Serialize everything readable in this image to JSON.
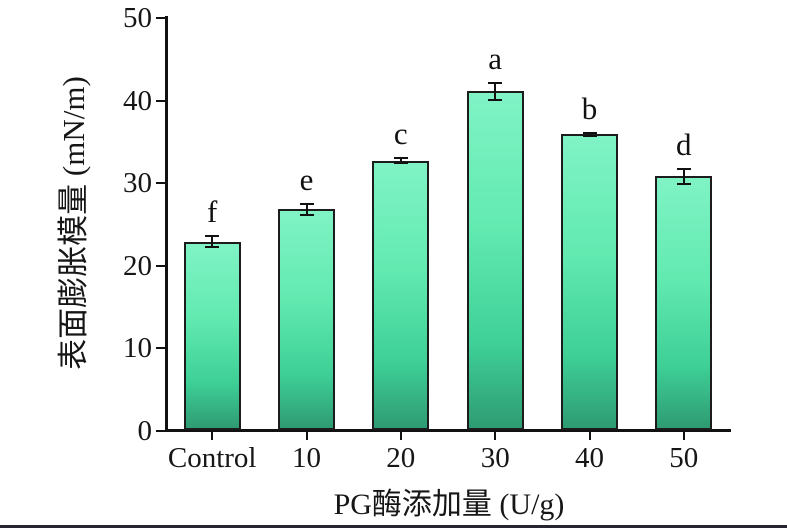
{
  "chart_data": {
    "type": "bar",
    "title": "",
    "categories": [
      "Control",
      "10",
      "20",
      "30",
      "40",
      "50"
    ],
    "values": [
      22.9,
      26.8,
      32.7,
      41.1,
      35.9,
      30.8
    ],
    "errors": [
      0.7,
      0.7,
      0.3,
      1.0,
      0.2,
      0.9
    ],
    "sig_letters": [
      "f",
      "e",
      "c",
      "a",
      "b",
      "d"
    ],
    "xlabel": "PG酶添加量 (U/g)",
    "ylabel": "表面膨胀模量 (mN/m)",
    "ylim": [
      0,
      50
    ],
    "yticks": [
      0,
      10,
      20,
      30,
      40,
      50
    ],
    "grid": false,
    "legend": null,
    "colors": {
      "bar_top": "#80f3c5",
      "bar_bottom": "#2f9b73",
      "bar_outline": "#1c1c1c",
      "axis": "#111111",
      "text": "#161616",
      "bottom_rule": "#262631"
    }
  }
}
